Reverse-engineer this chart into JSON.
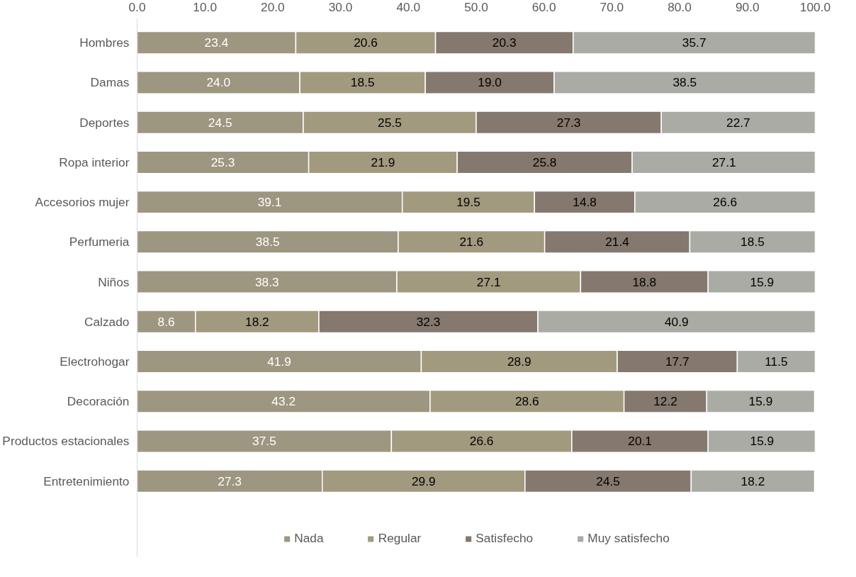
{
  "chart_data": {
    "type": "bar",
    "orientation": "horizontal",
    "stacked": true,
    "legend": "bottom",
    "grid": false,
    "categories": [
      "Hombres",
      "Damas",
      "Deportes",
      "Ropa interior",
      "Accesorios mujer",
      "Perfumeria",
      "Niños",
      "Calzado",
      "Electrohogar",
      "Decoración",
      "Productos estacionales",
      "Entretenimiento"
    ],
    "xlim": [
      0,
      100
    ],
    "xticks": [
      {
        "value": 0,
        "label": "0.0"
      },
      {
        "value": 10,
        "label": "10.0"
      },
      {
        "value": 20,
        "label": "20.0"
      },
      {
        "value": 30,
        "label": "30.0"
      },
      {
        "value": 40,
        "label": "40.0"
      },
      {
        "value": 50,
        "label": "50.0"
      },
      {
        "value": 60,
        "label": "60.0"
      },
      {
        "value": 70,
        "label": "70.0"
      },
      {
        "value": 80,
        "label": "80.0"
      },
      {
        "value": 90,
        "label": "90.0"
      },
      {
        "value": 100,
        "label": "100.0"
      }
    ],
    "series": [
      {
        "name": "Nada",
        "color": "#9d9680",
        "values": [
          23.4,
          24.0,
          24.5,
          25.3,
          39.1,
          38.5,
          38.3,
          8.6,
          41.9,
          43.2,
          37.5,
          27.3
        ],
        "value_labels": [
          "23.4",
          "24.0",
          "24.5",
          "25.3",
          "39.1",
          "38.5",
          "38.3",
          "8.6",
          "41.9",
          "43.2",
          "37.5",
          "27.3"
        ]
      },
      {
        "name": "Regular",
        "color": "#a19a7f",
        "values": [
          20.6,
          18.5,
          25.5,
          21.9,
          19.5,
          21.6,
          27.1,
          18.2,
          28.9,
          28.6,
          26.6,
          29.9
        ],
        "value_labels": [
          "20.6",
          "18.5",
          "25.5",
          "21.9",
          "19.5",
          "21.6",
          "27.1",
          "18.2",
          "28.9",
          "28.6",
          "26.6",
          "29.9"
        ]
      },
      {
        "name": "Satisfecho",
        "color": "#85786e",
        "values": [
          20.3,
          19.0,
          27.3,
          25.8,
          14.8,
          21.4,
          18.8,
          32.3,
          17.7,
          12.2,
          20.1,
          24.5
        ],
        "value_labels": [
          "20.3",
          "19.0",
          "27.3",
          "25.8",
          "14.8",
          "21.4",
          "18.8",
          "32.3",
          "17.7",
          "12.2",
          "20.1",
          "24.5"
        ]
      },
      {
        "name": "Muy satisfecho",
        "color": "#aaaba4",
        "values": [
          35.7,
          38.5,
          22.7,
          27.1,
          26.6,
          18.5,
          15.9,
          40.9,
          11.5,
          15.9,
          15.9,
          18.2
        ],
        "value_labels": [
          "35.7",
          "38.5",
          "22.7",
          "27.1",
          "26.6",
          "18.5",
          "15.9",
          "40.9",
          "11.5",
          "15.9",
          "15.9",
          "18.2"
        ]
      }
    ]
  }
}
